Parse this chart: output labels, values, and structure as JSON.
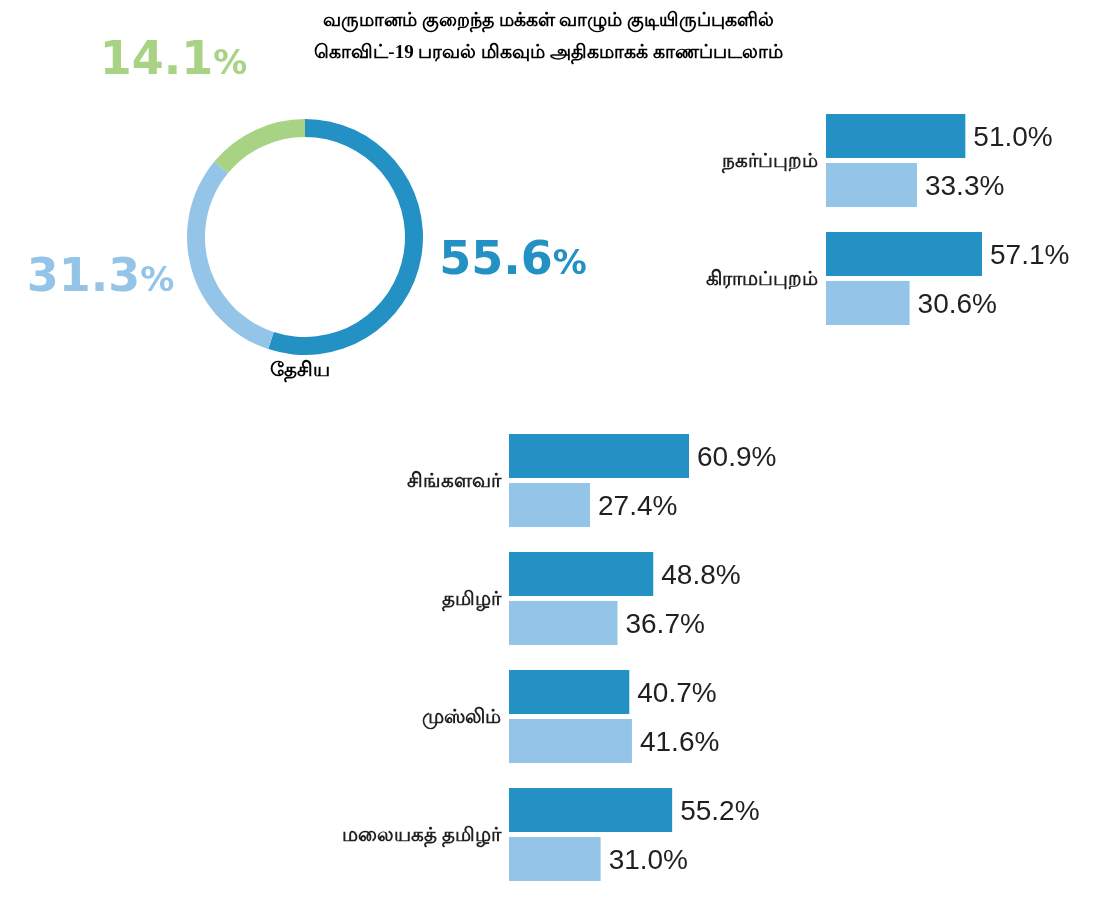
{
  "chart_data": [
    {
      "type": "donut",
      "title": "வருமானம் குறைந்த மக்கள் வாழும் குடியிருப்புகளில்\nகொவிட்-19 பரவல் மிகவும் அதிகமாகக் காணப்படலாம்",
      "xlabel": "தேசிய",
      "categories": [
        null,
        null,
        null
      ],
      "values": [
        55.6,
        31.3,
        14.1
      ],
      "colors": [
        "#2391c3",
        "#94c5e8",
        "#a8d384"
      ],
      "value_labels": [
        "55.6%",
        "31.3%",
        "14.1%"
      ]
    },
    {
      "type": "bar",
      "orientation": "horizontal",
      "categories": [
        "நகர்ப்புறம்",
        "கிராமப்புறம்"
      ],
      "series": [
        {
          "color": "#2391c3",
          "values": [
            51.0,
            57.1
          ],
          "value_labels": [
            "51.0%",
            "57.1%"
          ]
        },
        {
          "color": "#94c5e8",
          "values": [
            33.3,
            30.6
          ],
          "value_labels": [
            "33.3%",
            "30.6%"
          ]
        }
      ]
    },
    {
      "type": "bar",
      "orientation": "horizontal",
      "categories": [
        "சிங்களவர்",
        "தமிழர்",
        "முஸ்லிம்",
        "மலையகத் தமிழர்"
      ],
      "series": [
        {
          "color": "#2391c3",
          "values": [
            60.9,
            48.8,
            40.7,
            55.2
          ],
          "value_labels": [
            "60.9%",
            "48.8%",
            "40.7%",
            "55.2%"
          ]
        },
        {
          "color": "#94c5e8",
          "values": [
            27.4,
            36.7,
            41.6,
            31.0
          ],
          "value_labels": [
            "27.4%",
            "36.7%",
            "41.6%",
            "31.0%"
          ]
        }
      ]
    }
  ]
}
